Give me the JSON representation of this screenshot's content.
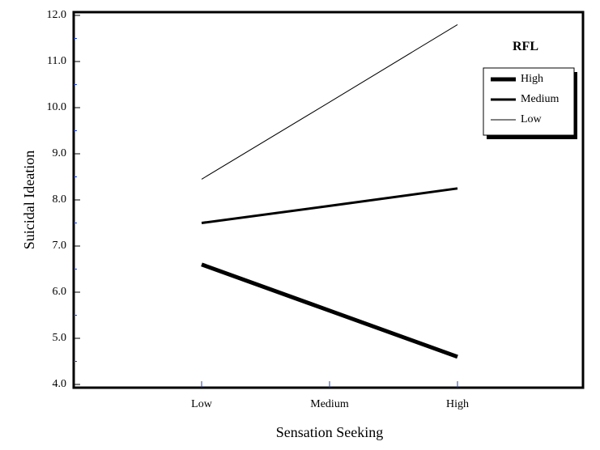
{
  "chart_data": {
    "type": "line",
    "title": "",
    "xlabel": "Sensation Seeking",
    "ylabel": "Suicidal Ideation",
    "categories": [
      "Low",
      "Medium",
      "High"
    ],
    "ylim": [
      4.0,
      12.0
    ],
    "yticks": [
      "4.0",
      "5.0",
      "6.0",
      "7.0",
      "8.0",
      "9.0",
      "10.0",
      "11.0",
      "12.0"
    ],
    "legend_title": "RFL",
    "legend_position": "top-right",
    "grid": false,
    "series": [
      {
        "name": "High",
        "values": [
          6.6,
          5.6,
          4.6
        ],
        "line_weight": "thick"
      },
      {
        "name": "Medium",
        "values": [
          7.5,
          7.87,
          8.25
        ],
        "line_weight": "medium"
      },
      {
        "name": "Low",
        "values": [
          8.45,
          10.12,
          11.8
        ],
        "line_weight": "thin"
      }
    ],
    "colors": {
      "line": "#000000",
      "minor_tick": "#1f3fbf"
    }
  }
}
